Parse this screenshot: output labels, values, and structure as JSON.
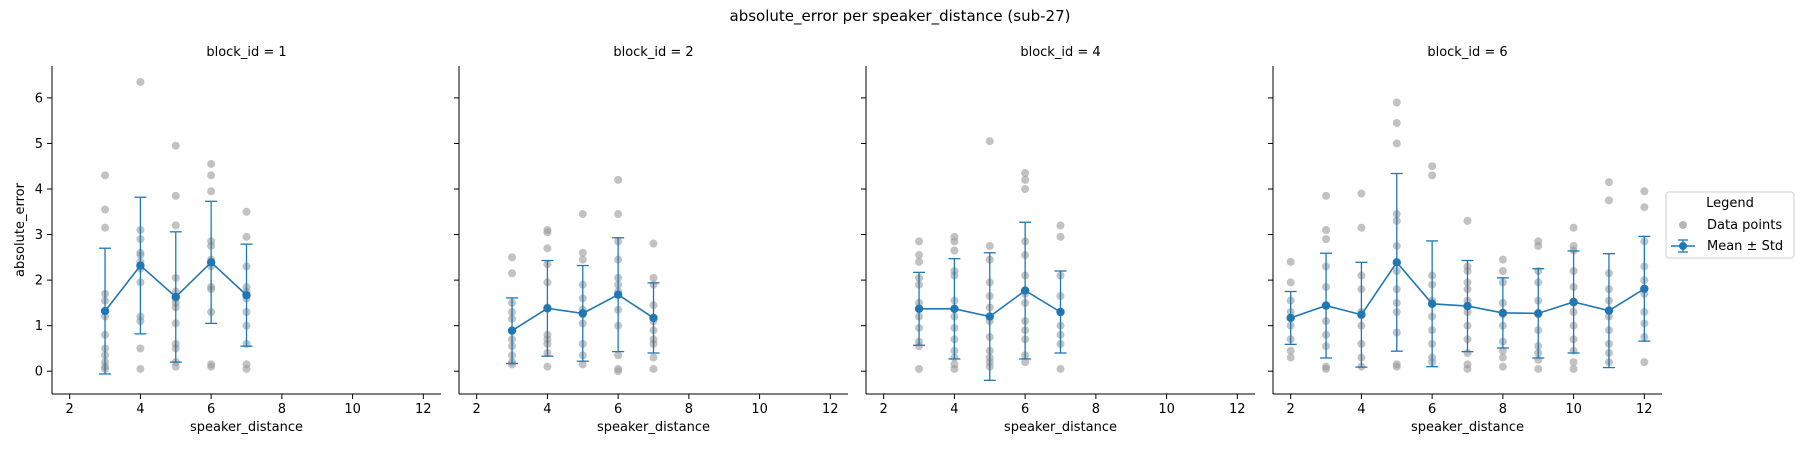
{
  "figure": {
    "title": "absolute_error per speaker_distance (sub-27)",
    "legend": {
      "title": "Legend",
      "points_label": "Data points",
      "mean_label": "Mean ± Std",
      "placement": "center-right"
    }
  },
  "colors": {
    "points": "#999999",
    "mean": "#1f77b4"
  },
  "chart_data": [
    {
      "type": "scatter",
      "title": "block_id = 1",
      "xlabel": "speaker_distance",
      "ylabel": "absolute_error",
      "xlim": [
        1.5,
        12.5
      ],
      "ylim": [
        -0.5,
        6.7
      ],
      "xticks": [
        2,
        4,
        6,
        8,
        10,
        12
      ],
      "yticks": [
        0,
        1,
        2,
        3,
        4,
        5,
        6
      ],
      "points": [
        [
          3,
          4.3
        ],
        [
          3,
          3.55
        ],
        [
          3,
          3.15
        ],
        [
          3,
          1.7
        ],
        [
          3,
          1.55
        ],
        [
          3,
          1.2
        ],
        [
          3,
          0.8
        ],
        [
          3,
          0.5
        ],
        [
          3,
          0.35
        ],
        [
          3,
          0.2
        ],
        [
          3,
          0.1
        ],
        [
          3,
          0.05
        ],
        [
          4,
          6.35
        ],
        [
          4,
          3.1
        ],
        [
          4,
          2.9
        ],
        [
          4,
          2.6
        ],
        [
          4,
          2.55
        ],
        [
          4,
          2.4
        ],
        [
          4,
          2.25
        ],
        [
          4,
          1.95
        ],
        [
          4,
          1.2
        ],
        [
          4,
          1.1
        ],
        [
          4,
          0.5
        ],
        [
          4,
          0.05
        ],
        [
          5,
          4.95
        ],
        [
          5,
          3.85
        ],
        [
          5,
          3.2
        ],
        [
          5,
          2.05
        ],
        [
          5,
          1.75
        ],
        [
          5,
          1.6
        ],
        [
          5,
          1.5
        ],
        [
          5,
          1.4
        ],
        [
          5,
          1.05
        ],
        [
          5,
          0.6
        ],
        [
          5,
          0.5
        ],
        [
          5,
          0.2
        ],
        [
          5,
          0.1
        ],
        [
          6,
          4.55
        ],
        [
          6,
          4.3
        ],
        [
          6,
          3.95
        ],
        [
          6,
          2.85
        ],
        [
          6,
          2.75
        ],
        [
          6,
          2.45
        ],
        [
          6,
          2.3
        ],
        [
          6,
          1.85
        ],
        [
          6,
          1.8
        ],
        [
          6,
          1.3
        ],
        [
          6,
          0.15
        ],
        [
          6,
          0.1
        ],
        [
          7,
          3.5
        ],
        [
          7,
          2.95
        ],
        [
          7,
          2.3
        ],
        [
          7,
          1.85
        ],
        [
          7,
          1.75
        ],
        [
          7,
          1.6
        ],
        [
          7,
          1.3
        ],
        [
          7,
          1.0
        ],
        [
          7,
          0.6
        ],
        [
          7,
          0.15
        ],
        [
          7,
          0.05
        ]
      ],
      "series": [
        {
          "name": "Mean ± Std",
          "x": [
            3,
            4,
            5,
            6,
            7
          ],
          "mean": [
            1.32,
            2.32,
            1.63,
            2.39,
            1.67
          ],
          "std": [
            1.38,
            1.5,
            1.43,
            1.34,
            1.12
          ]
        }
      ]
    },
    {
      "type": "scatter",
      "title": "block_id = 2",
      "xlabel": "speaker_distance",
      "ylabel": "",
      "xlim": [
        1.5,
        12.5
      ],
      "ylim": [
        -0.5,
        6.7
      ],
      "xticks": [
        2,
        4,
        6,
        8,
        10,
        12
      ],
      "yticks": [
        0,
        1,
        2,
        3,
        4,
        5,
        6
      ],
      "points": [
        [
          3,
          2.5
        ],
        [
          3,
          2.15
        ],
        [
          3,
          1.5
        ],
        [
          3,
          1.3
        ],
        [
          3,
          1.15
        ],
        [
          3,
          0.9
        ],
        [
          3,
          0.7
        ],
        [
          3,
          0.55
        ],
        [
          3,
          0.35
        ],
        [
          3,
          0.2
        ],
        [
          3,
          0.15
        ],
        [
          4,
          3.1
        ],
        [
          4,
          3.05
        ],
        [
          4,
          2.7
        ],
        [
          4,
          2.35
        ],
        [
          4,
          1.95
        ],
        [
          4,
          1.4
        ],
        [
          4,
          0.8
        ],
        [
          4,
          0.7
        ],
        [
          4,
          0.6
        ],
        [
          4,
          0.4
        ],
        [
          4,
          0.1
        ],
        [
          5,
          3.45
        ],
        [
          5,
          2.6
        ],
        [
          5,
          2.45
        ],
        [
          5,
          1.9
        ],
        [
          5,
          1.6
        ],
        [
          5,
          1.35
        ],
        [
          5,
          1.25
        ],
        [
          5,
          1.05
        ],
        [
          5,
          0.6
        ],
        [
          5,
          0.35
        ],
        [
          5,
          0.15
        ],
        [
          6,
          4.2
        ],
        [
          6,
          3.45
        ],
        [
          6,
          2.85
        ],
        [
          6,
          2.45
        ],
        [
          6,
          2.05
        ],
        [
          6,
          1.9
        ],
        [
          6,
          1.75
        ],
        [
          6,
          1.35
        ],
        [
          6,
          1.0
        ],
        [
          6,
          0.35
        ],
        [
          6,
          0.05
        ],
        [
          6,
          0.0
        ],
        [
          7,
          2.8
        ],
        [
          7,
          2.05
        ],
        [
          7,
          1.9
        ],
        [
          7,
          1.45
        ],
        [
          7,
          1.1
        ],
        [
          7,
          0.9
        ],
        [
          7,
          0.7
        ],
        [
          7,
          0.6
        ],
        [
          7,
          0.3
        ],
        [
          7,
          0.05
        ]
      ],
      "series": [
        {
          "name": "Mean ± Std",
          "x": [
            3,
            4,
            5,
            6,
            7
          ],
          "mean": [
            0.89,
            1.38,
            1.27,
            1.68,
            1.17
          ],
          "std": [
            0.72,
            1.05,
            1.05,
            1.25,
            0.77
          ]
        }
      ]
    },
    {
      "type": "scatter",
      "title": "block_id = 4",
      "xlabel": "speaker_distance",
      "ylabel": "",
      "xlim": [
        1.5,
        12.5
      ],
      "ylim": [
        -0.5,
        6.7
      ],
      "xticks": [
        2,
        4,
        6,
        8,
        10,
        12
      ],
      "yticks": [
        0,
        1,
        2,
        3,
        4,
        5,
        6
      ],
      "points": [
        [
          3,
          2.85
        ],
        [
          3,
          2.55
        ],
        [
          3,
          2.4
        ],
        [
          3,
          2.05
        ],
        [
          3,
          1.9
        ],
        [
          3,
          1.5
        ],
        [
          3,
          1.2
        ],
        [
          3,
          0.95
        ],
        [
          3,
          0.65
        ],
        [
          3,
          0.55
        ],
        [
          3,
          0.05
        ],
        [
          4,
          2.95
        ],
        [
          4,
          2.85
        ],
        [
          4,
          2.65
        ],
        [
          4,
          2.2
        ],
        [
          4,
          2.1
        ],
        [
          4,
          1.55
        ],
        [
          4,
          1.2
        ],
        [
          4,
          0.95
        ],
        [
          4,
          0.7
        ],
        [
          4,
          0.45
        ],
        [
          4,
          0.3
        ],
        [
          4,
          0.15
        ],
        [
          4,
          0.05
        ],
        [
          5,
          5.05
        ],
        [
          5,
          2.75
        ],
        [
          5,
          2.45
        ],
        [
          5,
          1.95
        ],
        [
          5,
          1.65
        ],
        [
          5,
          1.4
        ],
        [
          5,
          1.1
        ],
        [
          5,
          0.75
        ],
        [
          5,
          0.45
        ],
        [
          5,
          0.3
        ],
        [
          5,
          0.2
        ],
        [
          5,
          0.1
        ],
        [
          6,
          4.35
        ],
        [
          6,
          4.2
        ],
        [
          6,
          4.0
        ],
        [
          6,
          2.85
        ],
        [
          6,
          2.55
        ],
        [
          6,
          2.1
        ],
        [
          6,
          1.7
        ],
        [
          6,
          1.5
        ],
        [
          6,
          1.1
        ],
        [
          6,
          0.9
        ],
        [
          6,
          0.7
        ],
        [
          6,
          0.35
        ],
        [
          6,
          0.2
        ],
        [
          7,
          3.2
        ],
        [
          7,
          2.95
        ],
        [
          7,
          2.1
        ],
        [
          7,
          1.65
        ],
        [
          7,
          1.3
        ],
        [
          7,
          1.0
        ],
        [
          7,
          0.8
        ],
        [
          7,
          0.6
        ],
        [
          7,
          0.05
        ]
      ],
      "series": [
        {
          "name": "Mean ± Std",
          "x": [
            3,
            4,
            5,
            6,
            7
          ],
          "mean": [
            1.37,
            1.37,
            1.2,
            1.77,
            1.3
          ],
          "std": [
            0.8,
            1.1,
            1.4,
            1.5,
            0.9
          ]
        }
      ]
    },
    {
      "type": "scatter",
      "title": "block_id = 6",
      "xlabel": "speaker_distance",
      "ylabel": "",
      "xlim": [
        1.5,
        12.5
      ],
      "ylim": [
        -0.5,
        6.7
      ],
      "xticks": [
        2,
        4,
        6,
        8,
        10,
        12
      ],
      "yticks": [
        0,
        1,
        2,
        3,
        4,
        5,
        6
      ],
      "points": [
        [
          2,
          2.4
        ],
        [
          2,
          1.95
        ],
        [
          2,
          1.55
        ],
        [
          2,
          1.3
        ],
        [
          2,
          1.0
        ],
        [
          2,
          0.7
        ],
        [
          2,
          0.45
        ],
        [
          2,
          0.3
        ],
        [
          3,
          3.85
        ],
        [
          3,
          3.1
        ],
        [
          3,
          2.9
        ],
        [
          3,
          2.3
        ],
        [
          3,
          1.85
        ],
        [
          3,
          1.45
        ],
        [
          3,
          1.1
        ],
        [
          3,
          0.8
        ],
        [
          3,
          0.55
        ],
        [
          3,
          0.1
        ],
        [
          3,
          0.05
        ],
        [
          4,
          3.9
        ],
        [
          4,
          3.15
        ],
        [
          4,
          2.1
        ],
        [
          4,
          1.8
        ],
        [
          4,
          1.3
        ],
        [
          4,
          1.0
        ],
        [
          4,
          0.6
        ],
        [
          4,
          0.3
        ],
        [
          4,
          0.1
        ],
        [
          5,
          5.9
        ],
        [
          5,
          5.45
        ],
        [
          5,
          5.0
        ],
        [
          5,
          3.45
        ],
        [
          5,
          3.3
        ],
        [
          5,
          2.75
        ],
        [
          5,
          2.2
        ],
        [
          5,
          1.8
        ],
        [
          5,
          1.5
        ],
        [
          5,
          1.3
        ],
        [
          5,
          0.85
        ],
        [
          5,
          0.15
        ],
        [
          5,
          0.1
        ],
        [
          6,
          4.5
        ],
        [
          6,
          4.3
        ],
        [
          6,
          2.1
        ],
        [
          6,
          1.9
        ],
        [
          6,
          1.55
        ],
        [
          6,
          1.2
        ],
        [
          6,
          0.9
        ],
        [
          6,
          0.6
        ],
        [
          6,
          0.3
        ],
        [
          6,
          0.2
        ],
        [
          7,
          3.3
        ],
        [
          7,
          2.3
        ],
        [
          7,
          2.2
        ],
        [
          7,
          1.95
        ],
        [
          7,
          1.8
        ],
        [
          7,
          1.55
        ],
        [
          7,
          1.3
        ],
        [
          7,
          1.0
        ],
        [
          7,
          0.7
        ],
        [
          7,
          0.4
        ],
        [
          7,
          0.15
        ],
        [
          7,
          0.05
        ],
        [
          8,
          2.45
        ],
        [
          8,
          2.2
        ],
        [
          8,
          1.95
        ],
        [
          8,
          1.5
        ],
        [
          8,
          1.25
        ],
        [
          8,
          1.0
        ],
        [
          8,
          0.65
        ],
        [
          8,
          0.45
        ],
        [
          8,
          0.3
        ],
        [
          8,
          0.1
        ],
        [
          9,
          2.85
        ],
        [
          9,
          2.75
        ],
        [
          9,
          2.2
        ],
        [
          9,
          1.95
        ],
        [
          9,
          1.55
        ],
        [
          9,
          1.25
        ],
        [
          9,
          0.9
        ],
        [
          9,
          0.55
        ],
        [
          9,
          0.4
        ],
        [
          9,
          0.25
        ],
        [
          9,
          0.05
        ],
        [
          10,
          3.15
        ],
        [
          10,
          2.75
        ],
        [
          10,
          2.65
        ],
        [
          10,
          2.2
        ],
        [
          10,
          1.85
        ],
        [
          10,
          1.5
        ],
        [
          10,
          1.3
        ],
        [
          10,
          1.0
        ],
        [
          10,
          0.7
        ],
        [
          10,
          0.45
        ],
        [
          10,
          0.2
        ],
        [
          10,
          0.05
        ],
        [
          11,
          4.15
        ],
        [
          11,
          3.75
        ],
        [
          11,
          2.15
        ],
        [
          11,
          1.8
        ],
        [
          11,
          1.55
        ],
        [
          11,
          1.2
        ],
        [
          11,
          0.9
        ],
        [
          11,
          0.6
        ],
        [
          11,
          0.4
        ],
        [
          11,
          0.2
        ],
        [
          12,
          3.95
        ],
        [
          12,
          3.6
        ],
        [
          12,
          2.85
        ],
        [
          12,
          2.3
        ],
        [
          12,
          2.0
        ],
        [
          12,
          1.7
        ],
        [
          12,
          1.3
        ],
        [
          12,
          1.05
        ],
        [
          12,
          0.75
        ],
        [
          12,
          0.2
        ]
      ],
      "series": [
        {
          "name": "Mean ± Std",
          "x": [
            2,
            3,
            4,
            5,
            6,
            7,
            8,
            9,
            10,
            11,
            12
          ],
          "mean": [
            1.17,
            1.44,
            1.24,
            2.39,
            1.48,
            1.43,
            1.28,
            1.27,
            1.52,
            1.33,
            1.81
          ],
          "std": [
            0.58,
            1.15,
            1.15,
            1.95,
            1.38,
            1.0,
            0.77,
            0.98,
            1.12,
            1.25,
            1.15
          ]
        }
      ]
    }
  ]
}
